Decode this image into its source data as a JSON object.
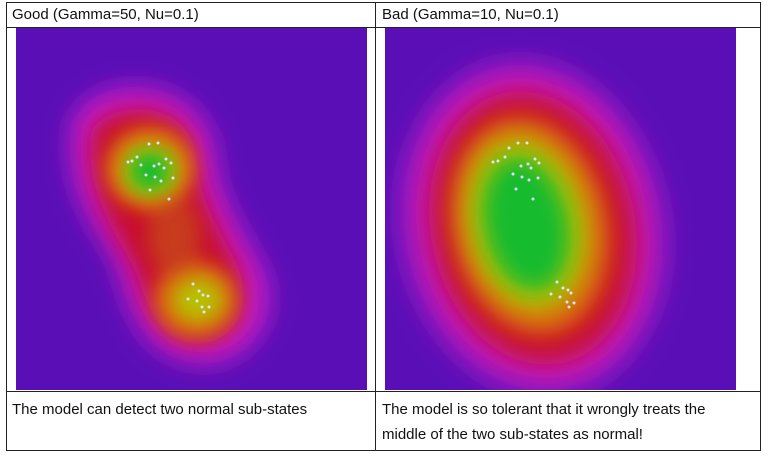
{
  "panels": [
    {
      "title": "Good (Gamma=50, Nu=0.1)",
      "caption": "The model can detect two normal sub-states"
    },
    {
      "title": "Bad (Gamma=10, Nu=0.1)",
      "caption": "The model is so tolerant that it wrongly treats the middle of the two sub-states as normal!"
    }
  ],
  "colors": {
    "background": "#5a0fb6",
    "magenta": "#c21fc8",
    "red": "#c8102a",
    "orange": "#d96a10",
    "yellow": "#b7c000",
    "green": "#18bb2e",
    "points": "#d8e8ff"
  }
}
